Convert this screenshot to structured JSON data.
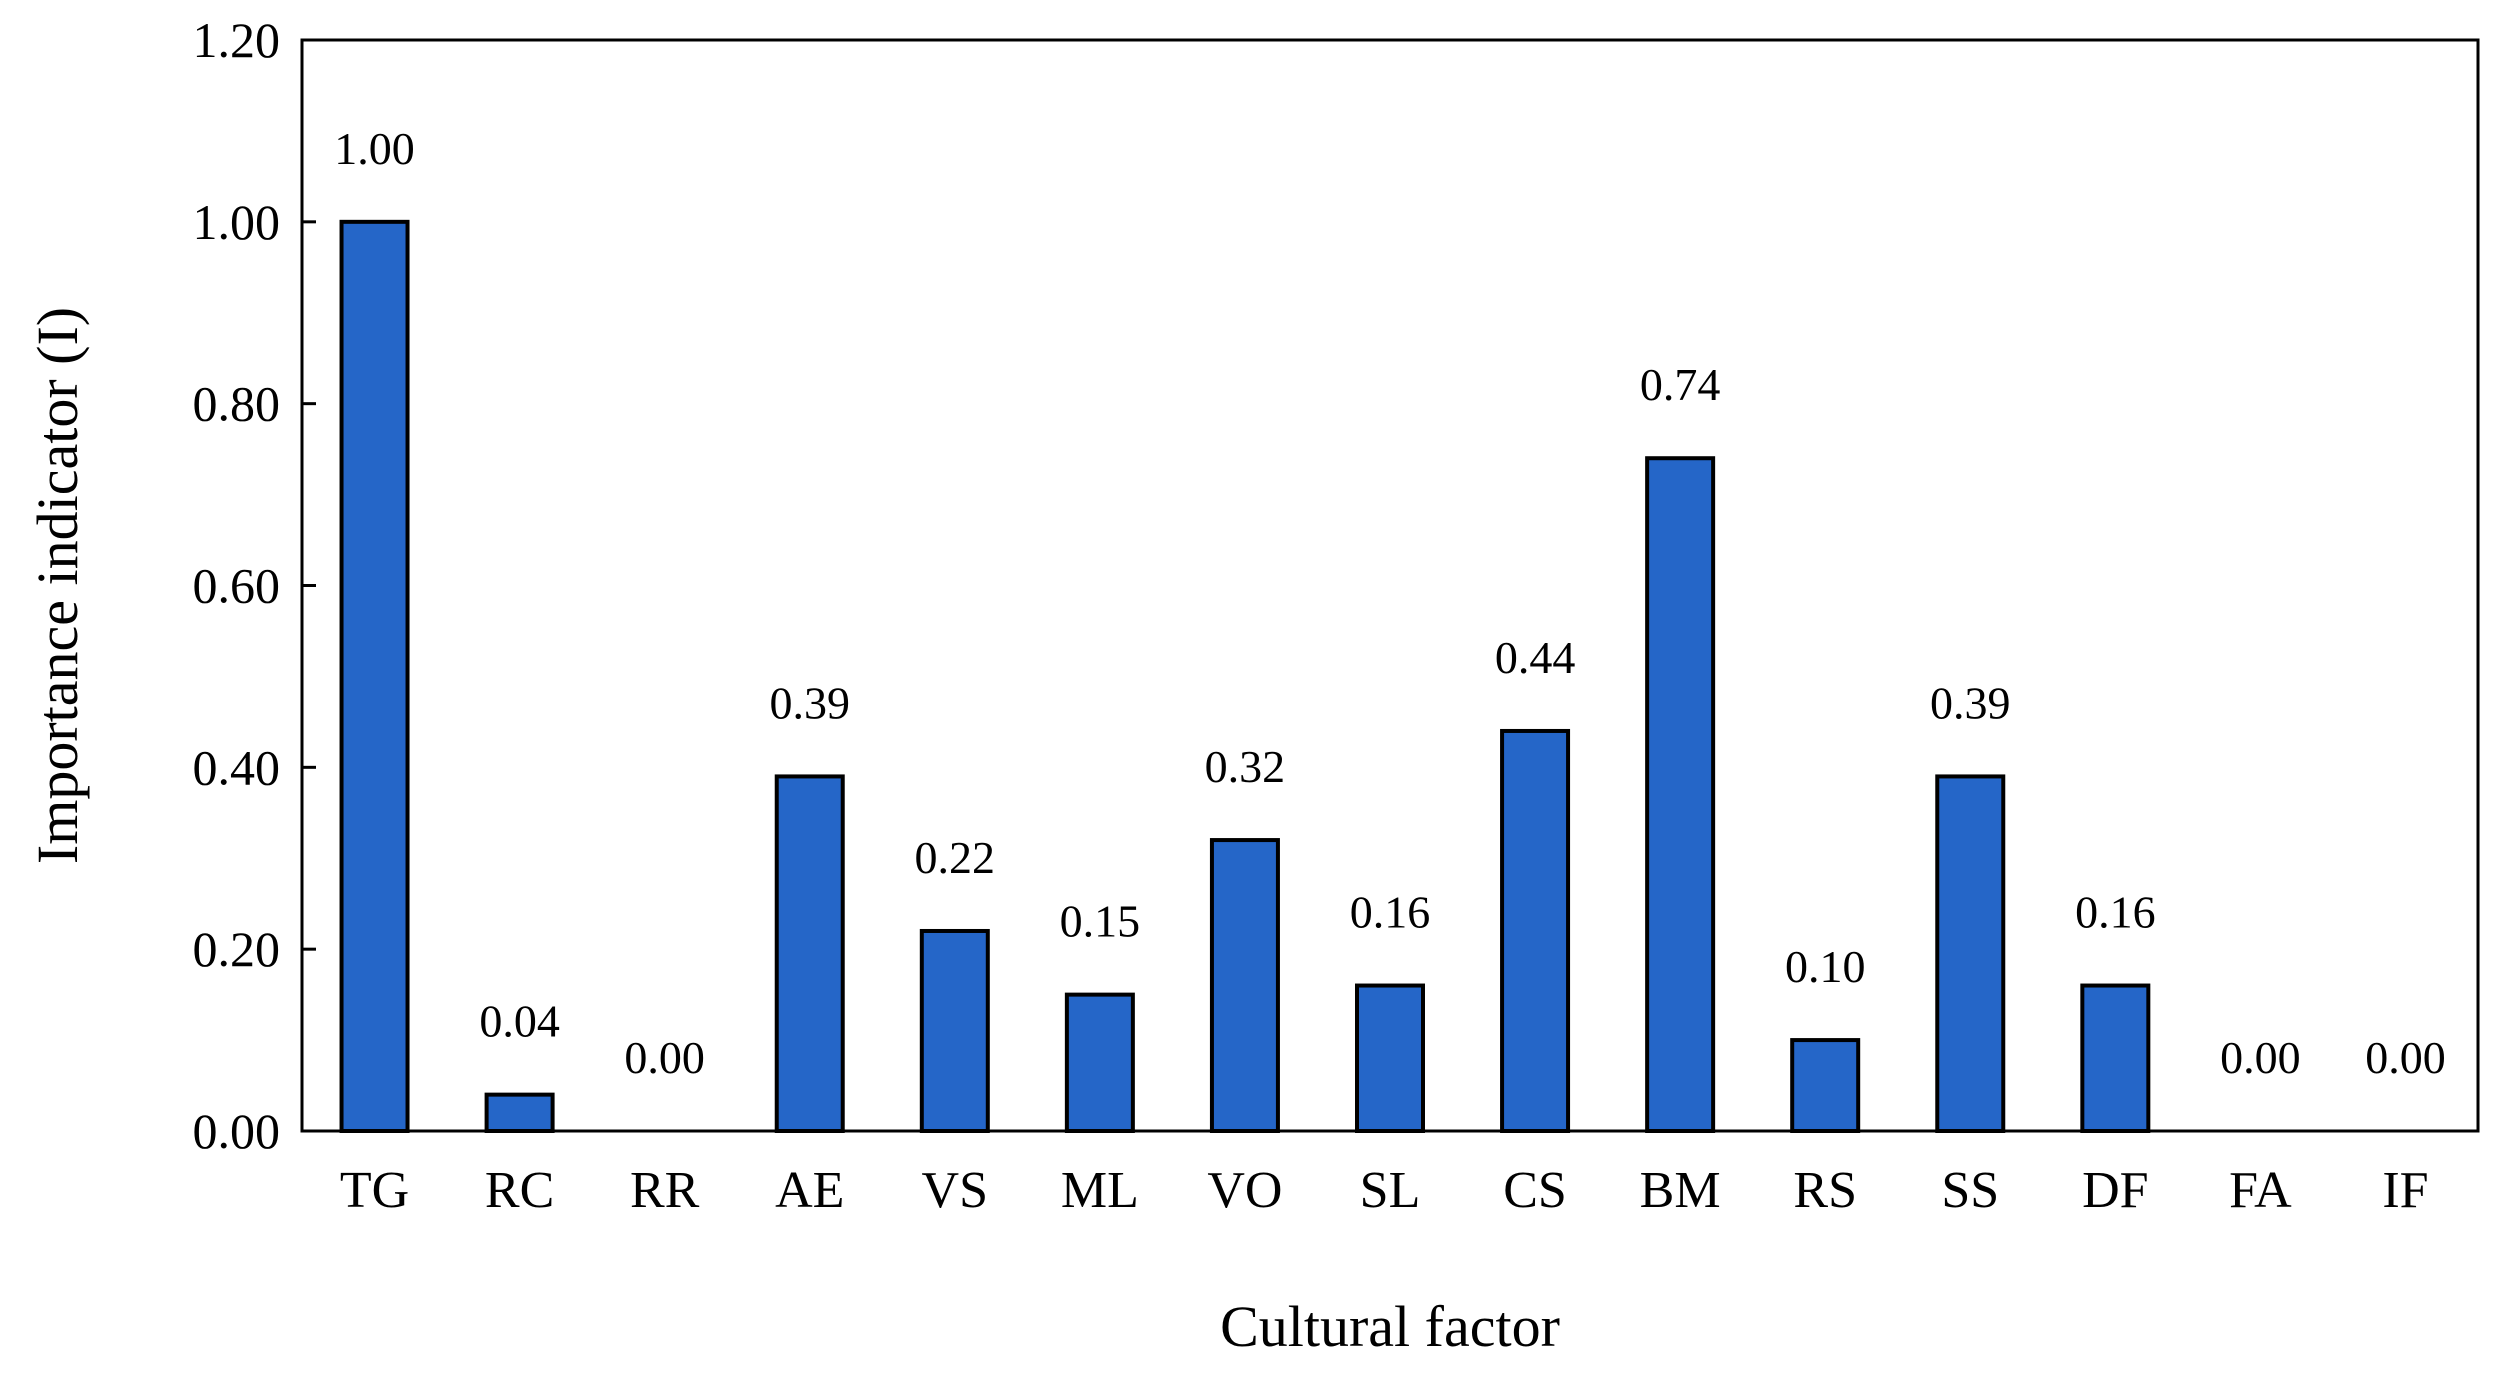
{
  "chart_data": {
    "type": "bar",
    "title": "",
    "xlabel": "Cultural factor",
    "ylabel": "Importance indicator (I)",
    "ylim": [
      0,
      1.2
    ],
    "yticks": [
      0,
      0.2,
      0.4,
      0.6,
      0.8,
      1.0,
      1.2
    ],
    "ytick_labels": [
      "0.00",
      "0.20",
      "0.40",
      "0.60",
      "0.80",
      "1.00",
      "1.20"
    ],
    "grid": false,
    "legend": "none",
    "categories": [
      "TG",
      "RC",
      "RR",
      "AE",
      "VS",
      "ML",
      "VO",
      "SL",
      "CS",
      "BM",
      "RS",
      "SS",
      "DF",
      "FA",
      "IF"
    ],
    "values": [
      1.0,
      0.04,
      0.0,
      0.39,
      0.22,
      0.15,
      0.32,
      0.16,
      0.44,
      0.74,
      0.1,
      0.39,
      0.16,
      0.0,
      0.0
    ],
    "data_labels": [
      "1.00",
      "0.04",
      "0.00",
      "0.39",
      "0.22",
      "0.15",
      "0.32",
      "0.16",
      "0.44",
      "0.74",
      "0.10",
      "0.39",
      "0.16",
      "0.00",
      "0.00"
    ],
    "bar_color": "#2566C8",
    "bar_edge_color": "#000000"
  }
}
